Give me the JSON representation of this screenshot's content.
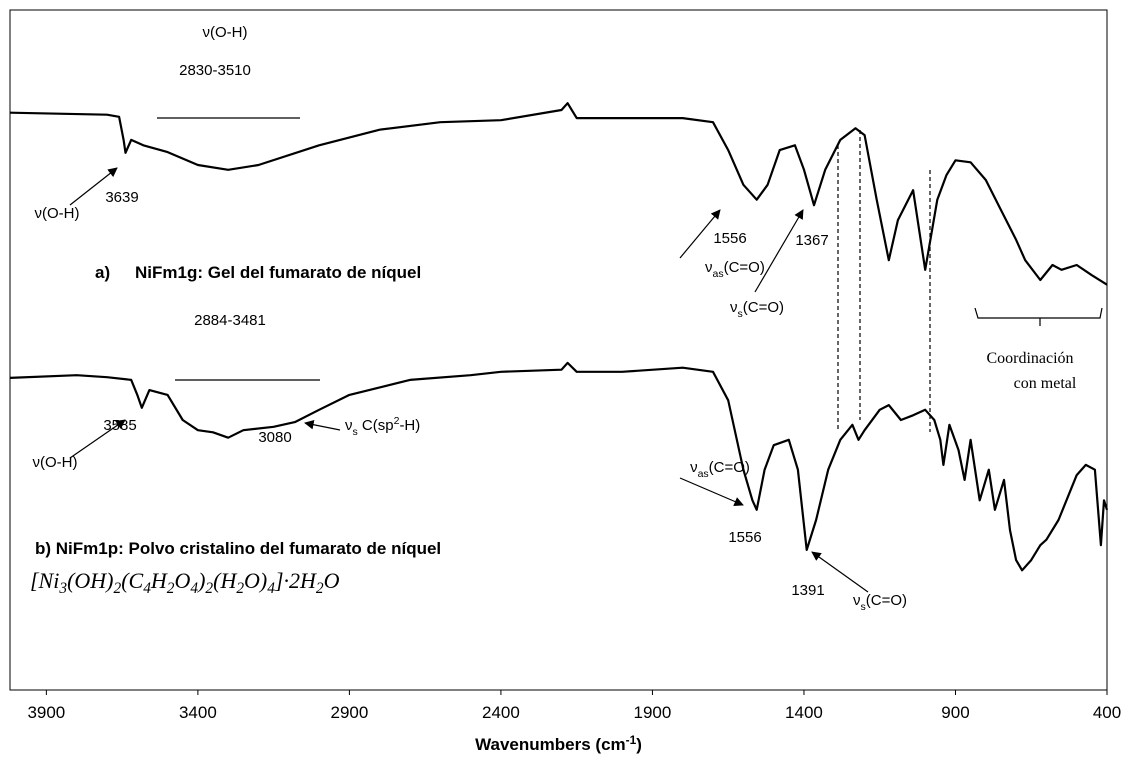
{
  "chart_data": {
    "type": "line",
    "x_label": {
      "runs": [
        {
          "t": "Wavenumbers (cm"
        },
        {
          "t": "-1",
          "sup": true
        },
        {
          "t": ")"
        }
      ]
    },
    "xlim": [
      4020,
      400
    ],
    "ylim": [
      0,
      100
    ],
    "xticks": [
      3900,
      3400,
      2900,
      2400,
      1900,
      1400,
      900,
      400
    ],
    "series": [
      {
        "color": "#000000",
        "x": [
          4020,
          3700,
          3660,
          3645,
          3639,
          3620,
          3580,
          3500,
          3400,
          3300,
          3200,
          3000,
          2800,
          2600,
          2400,
          2200,
          2180,
          2150,
          2000,
          1800,
          1700,
          1650,
          1600,
          1556,
          1520,
          1480,
          1430,
          1400,
          1367,
          1330,
          1280,
          1230,
          1200,
          1160,
          1120,
          1090,
          1040,
          1000,
          960,
          930,
          900,
          850,
          800,
          750,
          700,
          670,
          620,
          580,
          550,
          500,
          450,
          400
        ],
        "values": [
          84.9,
          84.6,
          84.3,
          80.9,
          79.0,
          80.9,
          80.1,
          79.1,
          77.2,
          76.5,
          77.2,
          80.1,
          82.4,
          83.5,
          83.8,
          85.3,
          86.3,
          84.1,
          84.1,
          84.1,
          83.5,
          79.4,
          74.3,
          72.1,
          74.3,
          79.4,
          80.1,
          76.5,
          71.3,
          76.5,
          80.9,
          82.6,
          81.6,
          72.1,
          63.2,
          69.1,
          73.5,
          61.8,
          72.1,
          75.7,
          77.9,
          77.6,
          75.0,
          70.6,
          66.2,
          63.2,
          60.3,
          62.5,
          61.8,
          62.5,
          61.0,
          59.6
        ]
      },
      {
        "color": "#000000",
        "x": [
          4020,
          3800,
          3700,
          3620,
          3600,
          3585,
          3560,
          3500,
          3450,
          3400,
          3350,
          3300,
          3250,
          3150,
          3080,
          3000,
          2900,
          2700,
          2500,
          2400,
          2200,
          2180,
          2150,
          2000,
          1800,
          1700,
          1650,
          1600,
          1570,
          1556,
          1530,
          1500,
          1450,
          1420,
          1391,
          1360,
          1320,
          1280,
          1240,
          1220,
          1200,
          1150,
          1120,
          1080,
          1040,
          1000,
          970,
          950,
          940,
          920,
          890,
          870,
          850,
          820,
          790,
          770,
          740,
          720,
          700,
          680,
          650,
          620,
          600,
          560,
          500,
          470,
          440,
          420,
          410,
          400
        ],
        "values": [
          45.9,
          46.3,
          46.0,
          45.6,
          43.4,
          41.5,
          44.1,
          43.4,
          39.7,
          38.2,
          37.9,
          37.1,
          38.2,
          38.7,
          39.4,
          41.2,
          43.4,
          45.6,
          46.3,
          46.8,
          47.1,
          48.1,
          46.8,
          46.8,
          47.4,
          46.8,
          42.6,
          32.4,
          27.9,
          26.5,
          32.4,
          36.0,
          36.8,
          32.4,
          20.6,
          25.0,
          32.4,
          36.8,
          39.0,
          36.8,
          38.2,
          41.2,
          41.9,
          39.7,
          40.4,
          41.2,
          39.7,
          36.8,
          33.1,
          39.0,
          35.3,
          30.9,
          36.8,
          27.9,
          32.4,
          26.5,
          30.9,
          23.5,
          19.1,
          17.6,
          19.1,
          21.3,
          22.1,
          25.0,
          31.6,
          33.1,
          32.4,
          21.3,
          27.9,
          26.5
        ]
      }
    ],
    "annotations": [
      {
        "runs": [
          {
            "t": "ν(O-H)"
          }
        ]
      },
      {
        "runs": [
          {
            "t": "2830-3510"
          }
        ]
      },
      {
        "runs": [
          {
            "t": "3639"
          }
        ]
      },
      {
        "runs": [
          {
            "t": "ν(O-H)"
          }
        ]
      },
      {
        "runs": [
          {
            "t": "a)"
          }
        ],
        "style": "bold"
      },
      {
        "runs": [
          {
            "t": "NiFm1g: Gel del fumarato de níquel"
          }
        ],
        "style": "bold"
      },
      {
        "runs": [
          {
            "t": "1556"
          }
        ]
      },
      {
        "runs": [
          {
            "t": "1367"
          }
        ]
      },
      {
        "runs": [
          {
            "t": "ν"
          },
          {
            "t": "as",
            "sub": true
          },
          {
            "t": "(C=O)"
          }
        ]
      },
      {
        "runs": [
          {
            "t": "ν"
          },
          {
            "t": "s",
            "sub": true
          },
          {
            "t": "(C=O)"
          }
        ]
      },
      {
        "runs": [
          {
            "t": "Coordinación"
          }
        ],
        "style": "serif"
      },
      {
        "runs": [
          {
            "t": "con metal"
          }
        ],
        "style": "serif"
      },
      {
        "runs": [
          {
            "t": "2884-3481"
          }
        ]
      },
      {
        "runs": [
          {
            "t": "3585"
          }
        ]
      },
      {
        "runs": [
          {
            "t": "3080"
          }
        ]
      },
      {
        "runs": [
          {
            "t": "ν"
          },
          {
            "t": "s",
            "sub": true
          },
          {
            "t": " C(sp"
          },
          {
            "t": "2",
            "sup": true
          },
          {
            "t": "-H)"
          }
        ]
      },
      {
        "runs": [
          {
            "t": "ν(O-H)"
          }
        ]
      },
      {
        "runs": [
          {
            "t": "ν"
          },
          {
            "t": "as",
            "sub": true
          },
          {
            "t": "(C=O)"
          }
        ]
      },
      {
        "runs": [
          {
            "t": "1556"
          }
        ]
      },
      {
        "runs": [
          {
            "t": "1391"
          }
        ]
      },
      {
        "runs": [
          {
            "t": "ν"
          },
          {
            "t": "s",
            "sub": true
          },
          {
            "t": "(C=O)"
          }
        ]
      },
      {
        "runs": [
          {
            "t": "b) NiFm1p: Polvo cristalino del fumarato de níquel"
          }
        ],
        "style": "bold"
      },
      {
        "runs": [
          {
            "t": "[Ni"
          },
          {
            "t": "3",
            "sub": true
          },
          {
            "t": "(OH)"
          },
          {
            "t": "2",
            "sub": true
          },
          {
            "t": "(C"
          },
          {
            "t": "4",
            "sub": true
          },
          {
            "t": "H"
          },
          {
            "t": "2",
            "sub": true
          },
          {
            "t": "O"
          },
          {
            "t": "4",
            "sub": true
          },
          {
            "t": ")"
          },
          {
            "t": "2",
            "sub": true
          },
          {
            "t": "(H"
          },
          {
            "t": "2",
            "sub": true
          },
          {
            "t": "O)"
          },
          {
            "t": "4",
            "sub": true
          },
          {
            "t": "]·2H"
          },
          {
            "t": "2",
            "sub": true
          },
          {
            "t": "O"
          }
        ],
        "style": "formula"
      }
    ]
  }
}
